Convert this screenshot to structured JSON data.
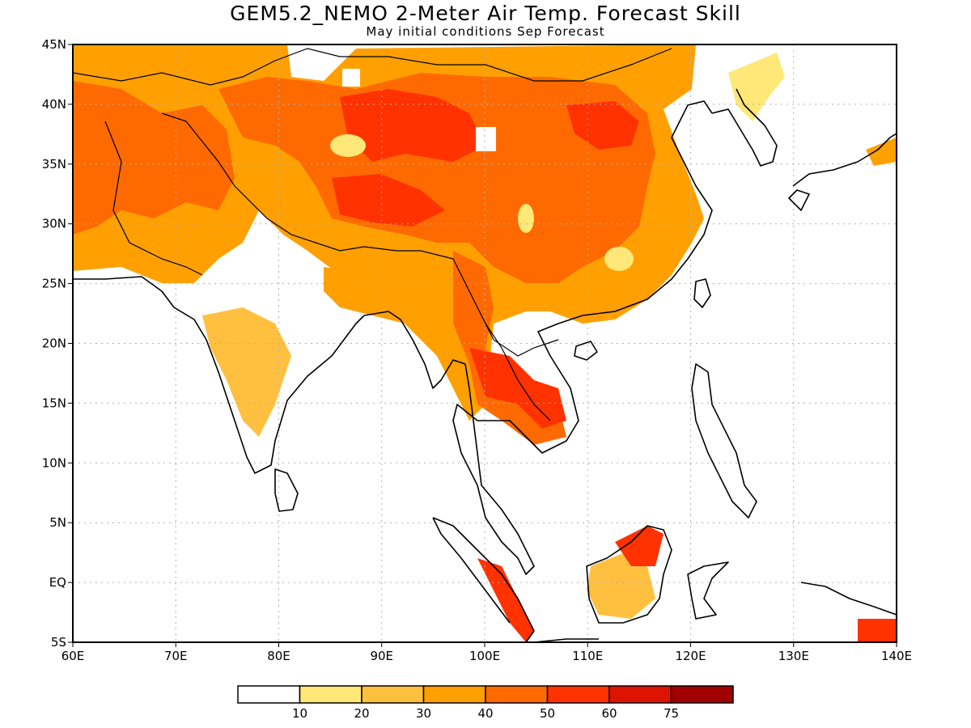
{
  "title": "GEM5.2_NEMO 2-Meter Air Temp. Forecast Skill",
  "subtitle": "May initial conditions  Sep Forecast",
  "lat_labels": [
    "45N",
    "40N",
    "35N",
    "30N",
    "25N",
    "20N",
    "15N",
    "10N",
    "5N",
    "EQ",
    "5S"
  ],
  "lon_labels": [
    "60E",
    "70E",
    "80E",
    "90E",
    "100E",
    "110E",
    "120E",
    "130E",
    "140E"
  ],
  "extent": {
    "lon_min": 60,
    "lon_max": 140,
    "lat_min": -5,
    "lat_max": 45
  },
  "colorbar": {
    "labels": [
      "10",
      "20",
      "30",
      "40",
      "50",
      "60",
      "75"
    ],
    "colors": [
      "#ffffff",
      "#ffe878",
      "#ffc040",
      "#ffa000",
      "#ff6a00",
      "#ff3200",
      "#dc1400",
      "#a00000"
    ]
  },
  "colors": {
    "frame": "#000000",
    "grid": "#b0b0b0",
    "coast": "#000000"
  }
}
